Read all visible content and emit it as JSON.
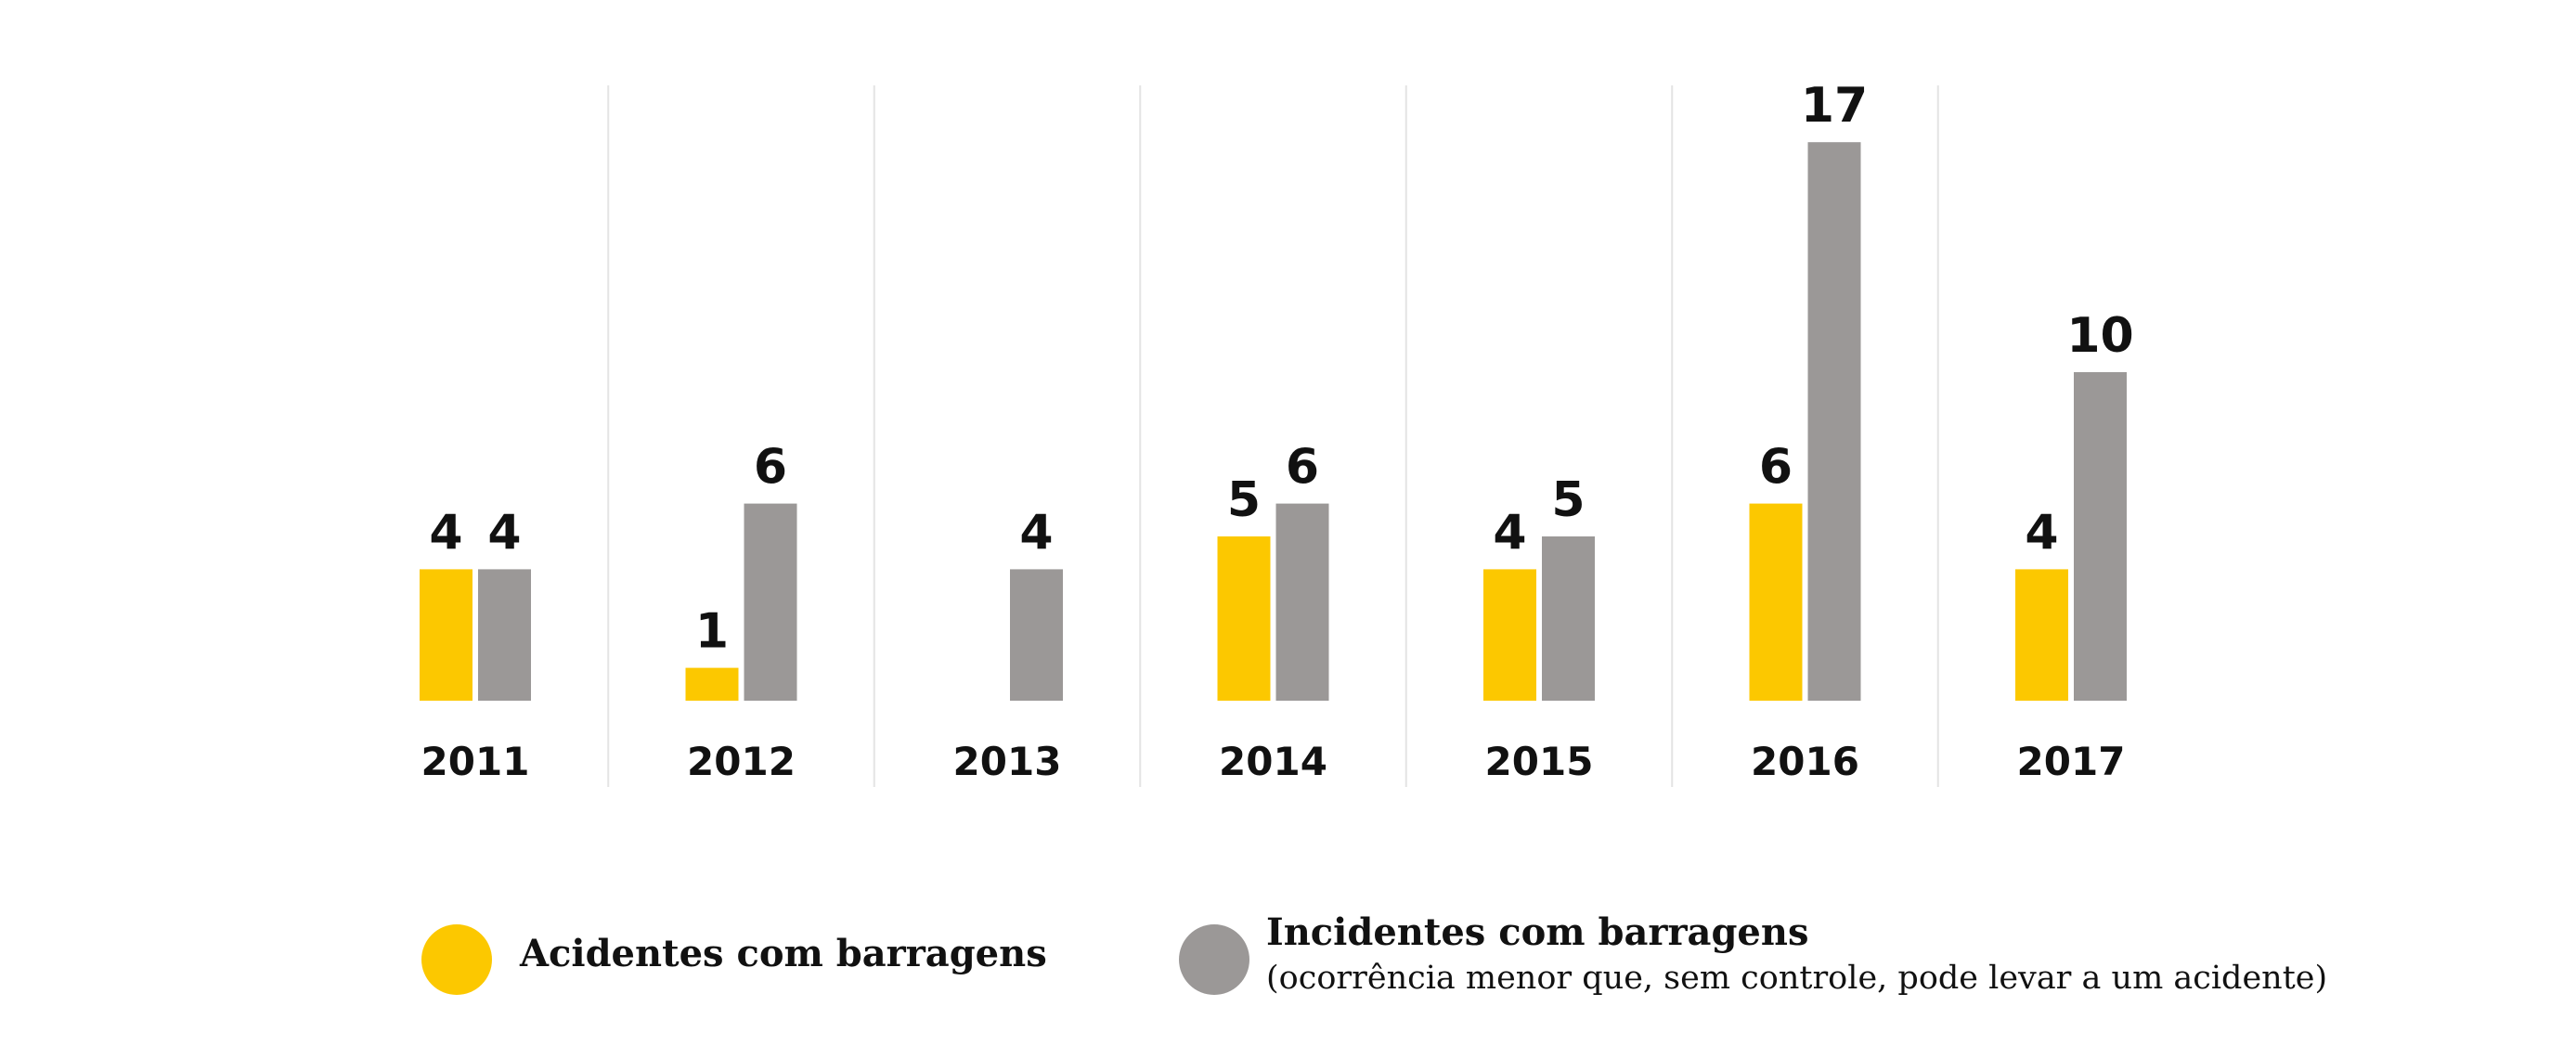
{
  "chart_data": {
    "type": "bar",
    "categories": [
      "2011",
      "2012",
      "2013",
      "2014",
      "2015",
      "2016",
      "2017"
    ],
    "series": [
      {
        "name": "Acidentes com barragens",
        "values": [
          4,
          1,
          null,
          5,
          4,
          6,
          4
        ],
        "color": "#FCC800"
      },
      {
        "name": "Incidentes com barragens",
        "values": [
          4,
          6,
          4,
          6,
          5,
          17,
          10
        ],
        "color": "#9B9897"
      }
    ],
    "ylim": [
      0,
      17
    ],
    "grid": "vertical separators between years",
    "legend_position": "bottom"
  },
  "legend": {
    "items": [
      {
        "title": "Acidentes com barragens",
        "subtitle": ""
      },
      {
        "title": "Incidentes com barragens",
        "subtitle": "(ocorrência menor que, sem controle, pode levar a um acidente)"
      }
    ]
  }
}
